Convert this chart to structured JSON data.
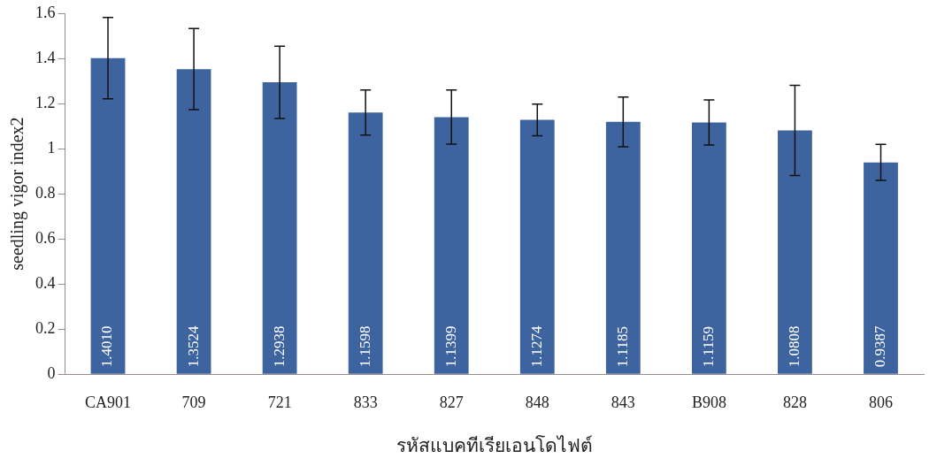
{
  "chart_data": {
    "type": "bar",
    "xlabel": "รหัสแบคทีเรียเอนโดไฟต์",
    "ylabel": "seedling vigor index2",
    "categories": [
      "CA901",
      "709",
      "721",
      "833",
      "827",
      "848",
      "843",
      "B908",
      "828",
      "806"
    ],
    "series": [
      {
        "color": "#3e64a0",
        "values": [
          1.401,
          1.3524,
          1.2938,
          1.1598,
          1.1399,
          1.1274,
          1.1185,
          1.1159,
          1.0808,
          0.9387
        ],
        "errors": [
          0.18,
          0.18,
          0.16,
          0.1,
          0.12,
          0.07,
          0.11,
          0.1,
          0.2,
          0.08
        ],
        "value_labels": [
          "1.4010",
          "1.3524",
          "1.2938",
          "1.1598",
          "1.1399",
          "1.1274",
          "1.1185",
          "1.1159",
          "1.0808",
          "0.9387"
        ]
      }
    ],
    "ylim": [
      0,
      1.6
    ],
    "yticks": [
      0,
      0.2,
      0.4,
      0.6,
      0.8,
      1,
      1.2,
      1.4,
      1.6
    ],
    "grid": false,
    "legend": false
  }
}
